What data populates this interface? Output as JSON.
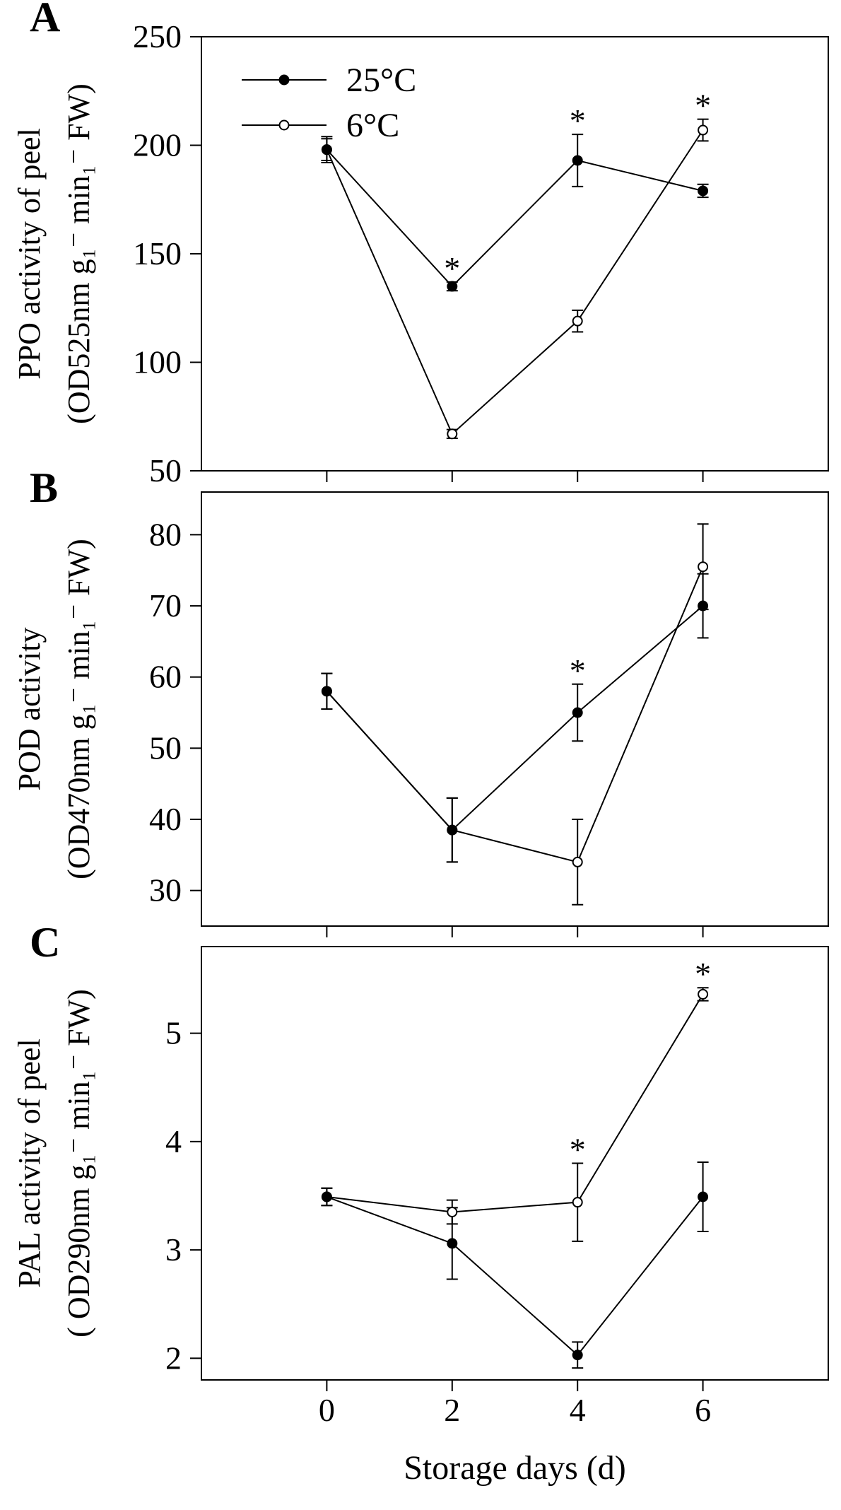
{
  "figure": {
    "xlabel": "Storage days (d)",
    "x_tick_labels": [
      "0",
      "2",
      "4",
      "6"
    ],
    "legend": [
      {
        "label": "25°C",
        "marker": "filled"
      },
      {
        "label": "6°C",
        "marker": "open"
      }
    ],
    "colors": {
      "axis": "#000000",
      "filled_marker": "#000000",
      "open_marker": "#ffffff"
    }
  },
  "chart_data": [
    {
      "type": "line",
      "panel_letter": "A",
      "ylabel_line1": "PPO activity of peel",
      "ylabel_line2": "(OD525nm g₁⁻ min₁⁻ FW)",
      "ylim": [
        50,
        250
      ],
      "yticks": [
        50,
        100,
        150,
        200,
        250
      ],
      "xlim": [
        -2,
        8
      ],
      "x": [
        0,
        2,
        4,
        6
      ],
      "legend_position": "top-left",
      "series": [
        {
          "name": "25°C",
          "marker": "filled",
          "values": [
            198,
            135,
            193,
            179
          ],
          "errors": [
            6,
            2,
            12,
            3
          ]
        },
        {
          "name": "6°C",
          "marker": "open",
          "values": [
            198,
            67,
            119,
            207
          ],
          "errors": [
            5,
            2,
            5,
            5
          ]
        }
      ],
      "significance_marks": [
        {
          "x": 2,
          "text": "*"
        },
        {
          "x": 4,
          "text": "*"
        },
        {
          "x": 6,
          "text": "*"
        }
      ]
    },
    {
      "type": "line",
      "panel_letter": "B",
      "ylabel_line1": "POD activity",
      "ylabel_line2": "(OD470nm g₁⁻ min₁⁻ FW)",
      "ylim": [
        25,
        86
      ],
      "yticks": [
        30,
        40,
        50,
        60,
        70,
        80
      ],
      "xlim": [
        -2,
        8
      ],
      "x": [
        0,
        2,
        4,
        6
      ],
      "series": [
        {
          "name": "25°C",
          "marker": "filled",
          "values": [
            58,
            38.5,
            55,
            70
          ],
          "errors": [
            2.5,
            4.5,
            4,
            4.5
          ]
        },
        {
          "name": "6°C",
          "marker": "open",
          "values": [
            58,
            38.5,
            34,
            75.5
          ],
          "errors": [
            2.5,
            4.5,
            6,
            6
          ]
        }
      ],
      "significance_marks": [
        {
          "x": 4,
          "text": "*"
        }
      ]
    },
    {
      "type": "line",
      "panel_letter": "C",
      "ylabel_line1": "PAL activity of peel",
      "ylabel_line2": "( OD290nm g₁⁻ min₁⁻ FW)",
      "ylim": [
        1.8,
        5.8
      ],
      "yticks": [
        2,
        3,
        4,
        5
      ],
      "xlim": [
        -2,
        8
      ],
      "x": [
        0,
        2,
        4,
        6
      ],
      "series": [
        {
          "name": "25°C",
          "marker": "filled",
          "values": [
            3.49,
            3.06,
            2.03,
            3.49
          ],
          "errors": [
            0.08,
            0.33,
            0.12,
            0.32
          ]
        },
        {
          "name": "6°C",
          "marker": "open",
          "values": [
            3.49,
            3.35,
            3.44,
            5.36
          ],
          "errors": [
            0.08,
            0.11,
            0.36,
            0.06
          ]
        }
      ],
      "significance_marks": [
        {
          "x": 4,
          "text": "*"
        },
        {
          "x": 6,
          "text": "*"
        }
      ]
    }
  ]
}
